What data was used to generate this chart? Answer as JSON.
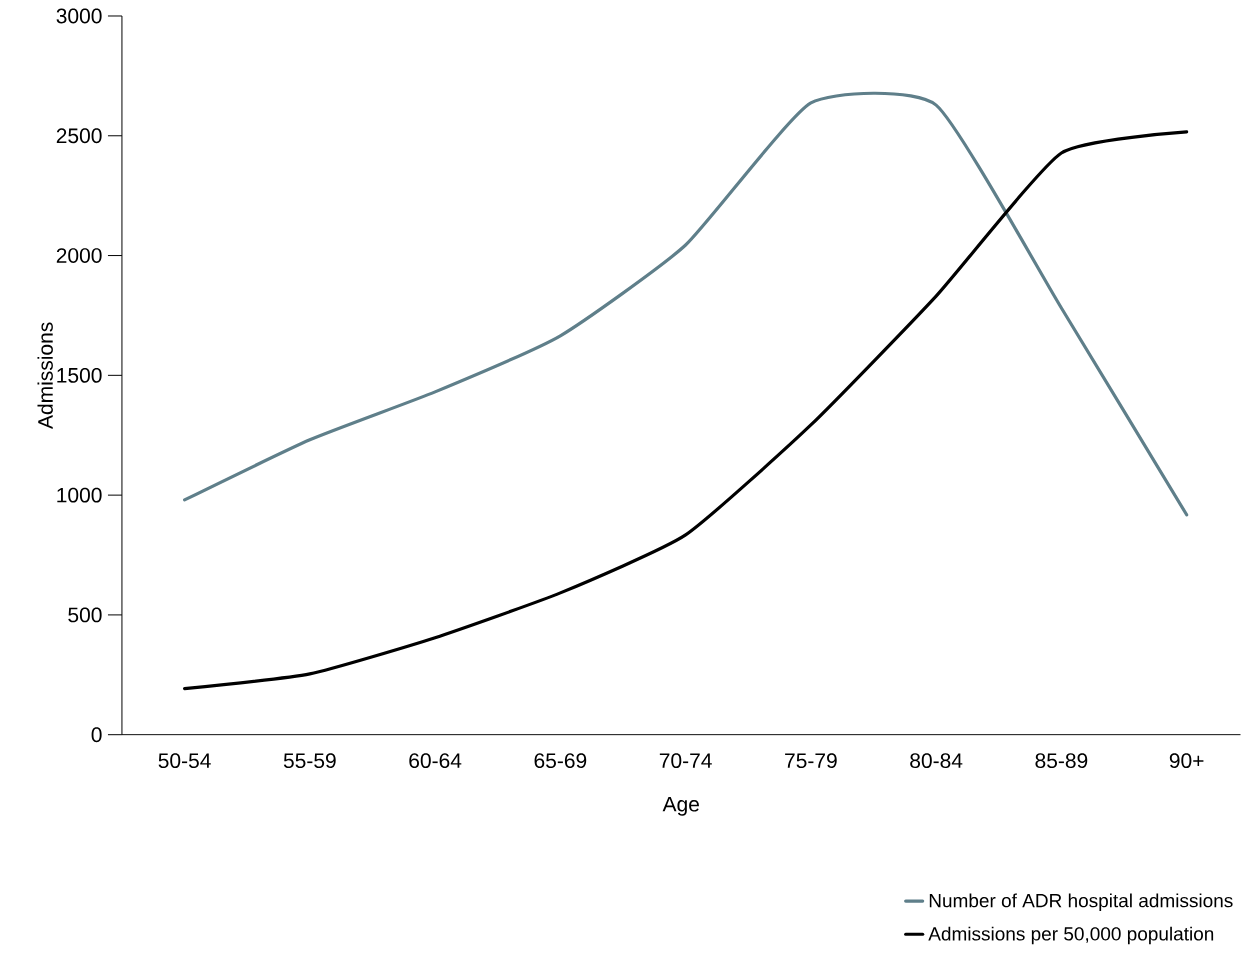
{
  "chart_data": {
    "type": "line",
    "xlabel": "Age",
    "ylabel": "Admissions",
    "categories": [
      "50-54",
      "55-59",
      "60-64",
      "65-69",
      "70-74",
      "75-79",
      "80-84",
      "85-89",
      "90+"
    ],
    "series": [
      {
        "name": "Number of ADR hospital admissions",
        "color": "#5f7f8a",
        "values": [
          980,
          1231,
          1431,
          1665,
          2044,
          2637,
          2628,
          1781,
          918
        ]
      },
      {
        "name": "Admissions per 50,000 population",
        "color": "#000000",
        "values": [
          192,
          254,
          405,
          592,
          834,
          1293,
          1831,
          2428,
          2516
        ]
      }
    ],
    "ylim": [
      0,
      3000
    ],
    "yticks": [
      0,
      500,
      1000,
      1500,
      2000,
      2500,
      3000
    ],
    "grid": false,
    "legend": "bottom right",
    "marker": "none",
    "line_style": "solid"
  }
}
